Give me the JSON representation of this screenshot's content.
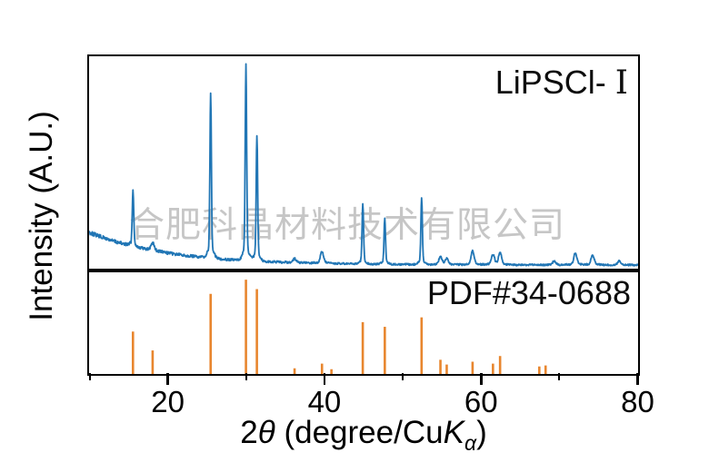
{
  "watermark": {
    "text": "合肥科晶材料技术有限公司",
    "color": "#c6c6c6"
  },
  "panels": {
    "top": {
      "label_prefix": "LiPSCl- ",
      "label_numeral": "I",
      "full_label": "LiPSCl- I"
    },
    "bottom": {
      "label": "PDF#34-0688"
    }
  },
  "axes": {
    "x": {
      "title_text": "2θ (degree/CuKα)",
      "title_parts": {
        "num": "2",
        "theta": "θ",
        "mid": " (degree/Cu",
        "k": "K",
        "sub": "α",
        "close": ")"
      },
      "min": 10,
      "max": 80,
      "major_ticks": [
        20,
        40,
        60,
        80
      ],
      "minor_ticks": [
        10,
        30,
        50,
        70
      ]
    },
    "y": {
      "title": "Intensity (A.U.)"
    }
  },
  "colors": {
    "sample_trace": "#2176b5",
    "reference_sticks": "#e8862e",
    "axis": "#000000"
  },
  "chart_data": {
    "type": "line",
    "title": "",
    "xlabel": "2θ (degree/CuKα)",
    "ylabel": "Intensity (A.U.)",
    "xlim": [
      10,
      80
    ],
    "grid": false,
    "layout": "two stacked panels sharing x-axis: top = measured XRD trace with noisy decaying background, bottom = reference stick pattern",
    "series": [
      {
        "name": "LiPSCl- I",
        "panel": "top",
        "type": "xrd-trace",
        "color": "#2176b5",
        "background": "noisy baseline decaying from high intensity at 10° to flat near 80°",
        "peaks_2theta_intensity": [
          [
            15.6,
            29
          ],
          [
            18.1,
            4
          ],
          [
            25.5,
            84
          ],
          [
            30.0,
            100
          ],
          [
            31.4,
            64
          ],
          [
            36.2,
            2
          ],
          [
            39.7,
            6
          ],
          [
            44.9,
            31
          ],
          [
            47.7,
            23
          ],
          [
            52.4,
            34
          ],
          [
            54.8,
            4
          ],
          [
            55.6,
            3
          ],
          [
            58.9,
            7
          ],
          [
            61.5,
            5
          ],
          [
            62.4,
            6
          ],
          [
            69.3,
            2
          ],
          [
            72.0,
            6
          ],
          [
            74.2,
            5
          ],
          [
            77.6,
            2
          ]
        ]
      },
      {
        "name": "PDF#34-0688",
        "panel": "bottom",
        "type": "stick",
        "color": "#e8862e",
        "peaks_2theta_intensity": [
          [
            15.6,
            45
          ],
          [
            18.1,
            25
          ],
          [
            25.5,
            85
          ],
          [
            30.0,
            100
          ],
          [
            31.4,
            90
          ],
          [
            36.2,
            6
          ],
          [
            39.7,
            11
          ],
          [
            40.9,
            5
          ],
          [
            44.9,
            55
          ],
          [
            47.7,
            50
          ],
          [
            52.4,
            60
          ],
          [
            54.8,
            15
          ],
          [
            55.6,
            10
          ],
          [
            58.9,
            13
          ],
          [
            61.5,
            11
          ],
          [
            62.4,
            19
          ],
          [
            67.4,
            8
          ],
          [
            68.2,
            9
          ]
        ]
      }
    ]
  }
}
